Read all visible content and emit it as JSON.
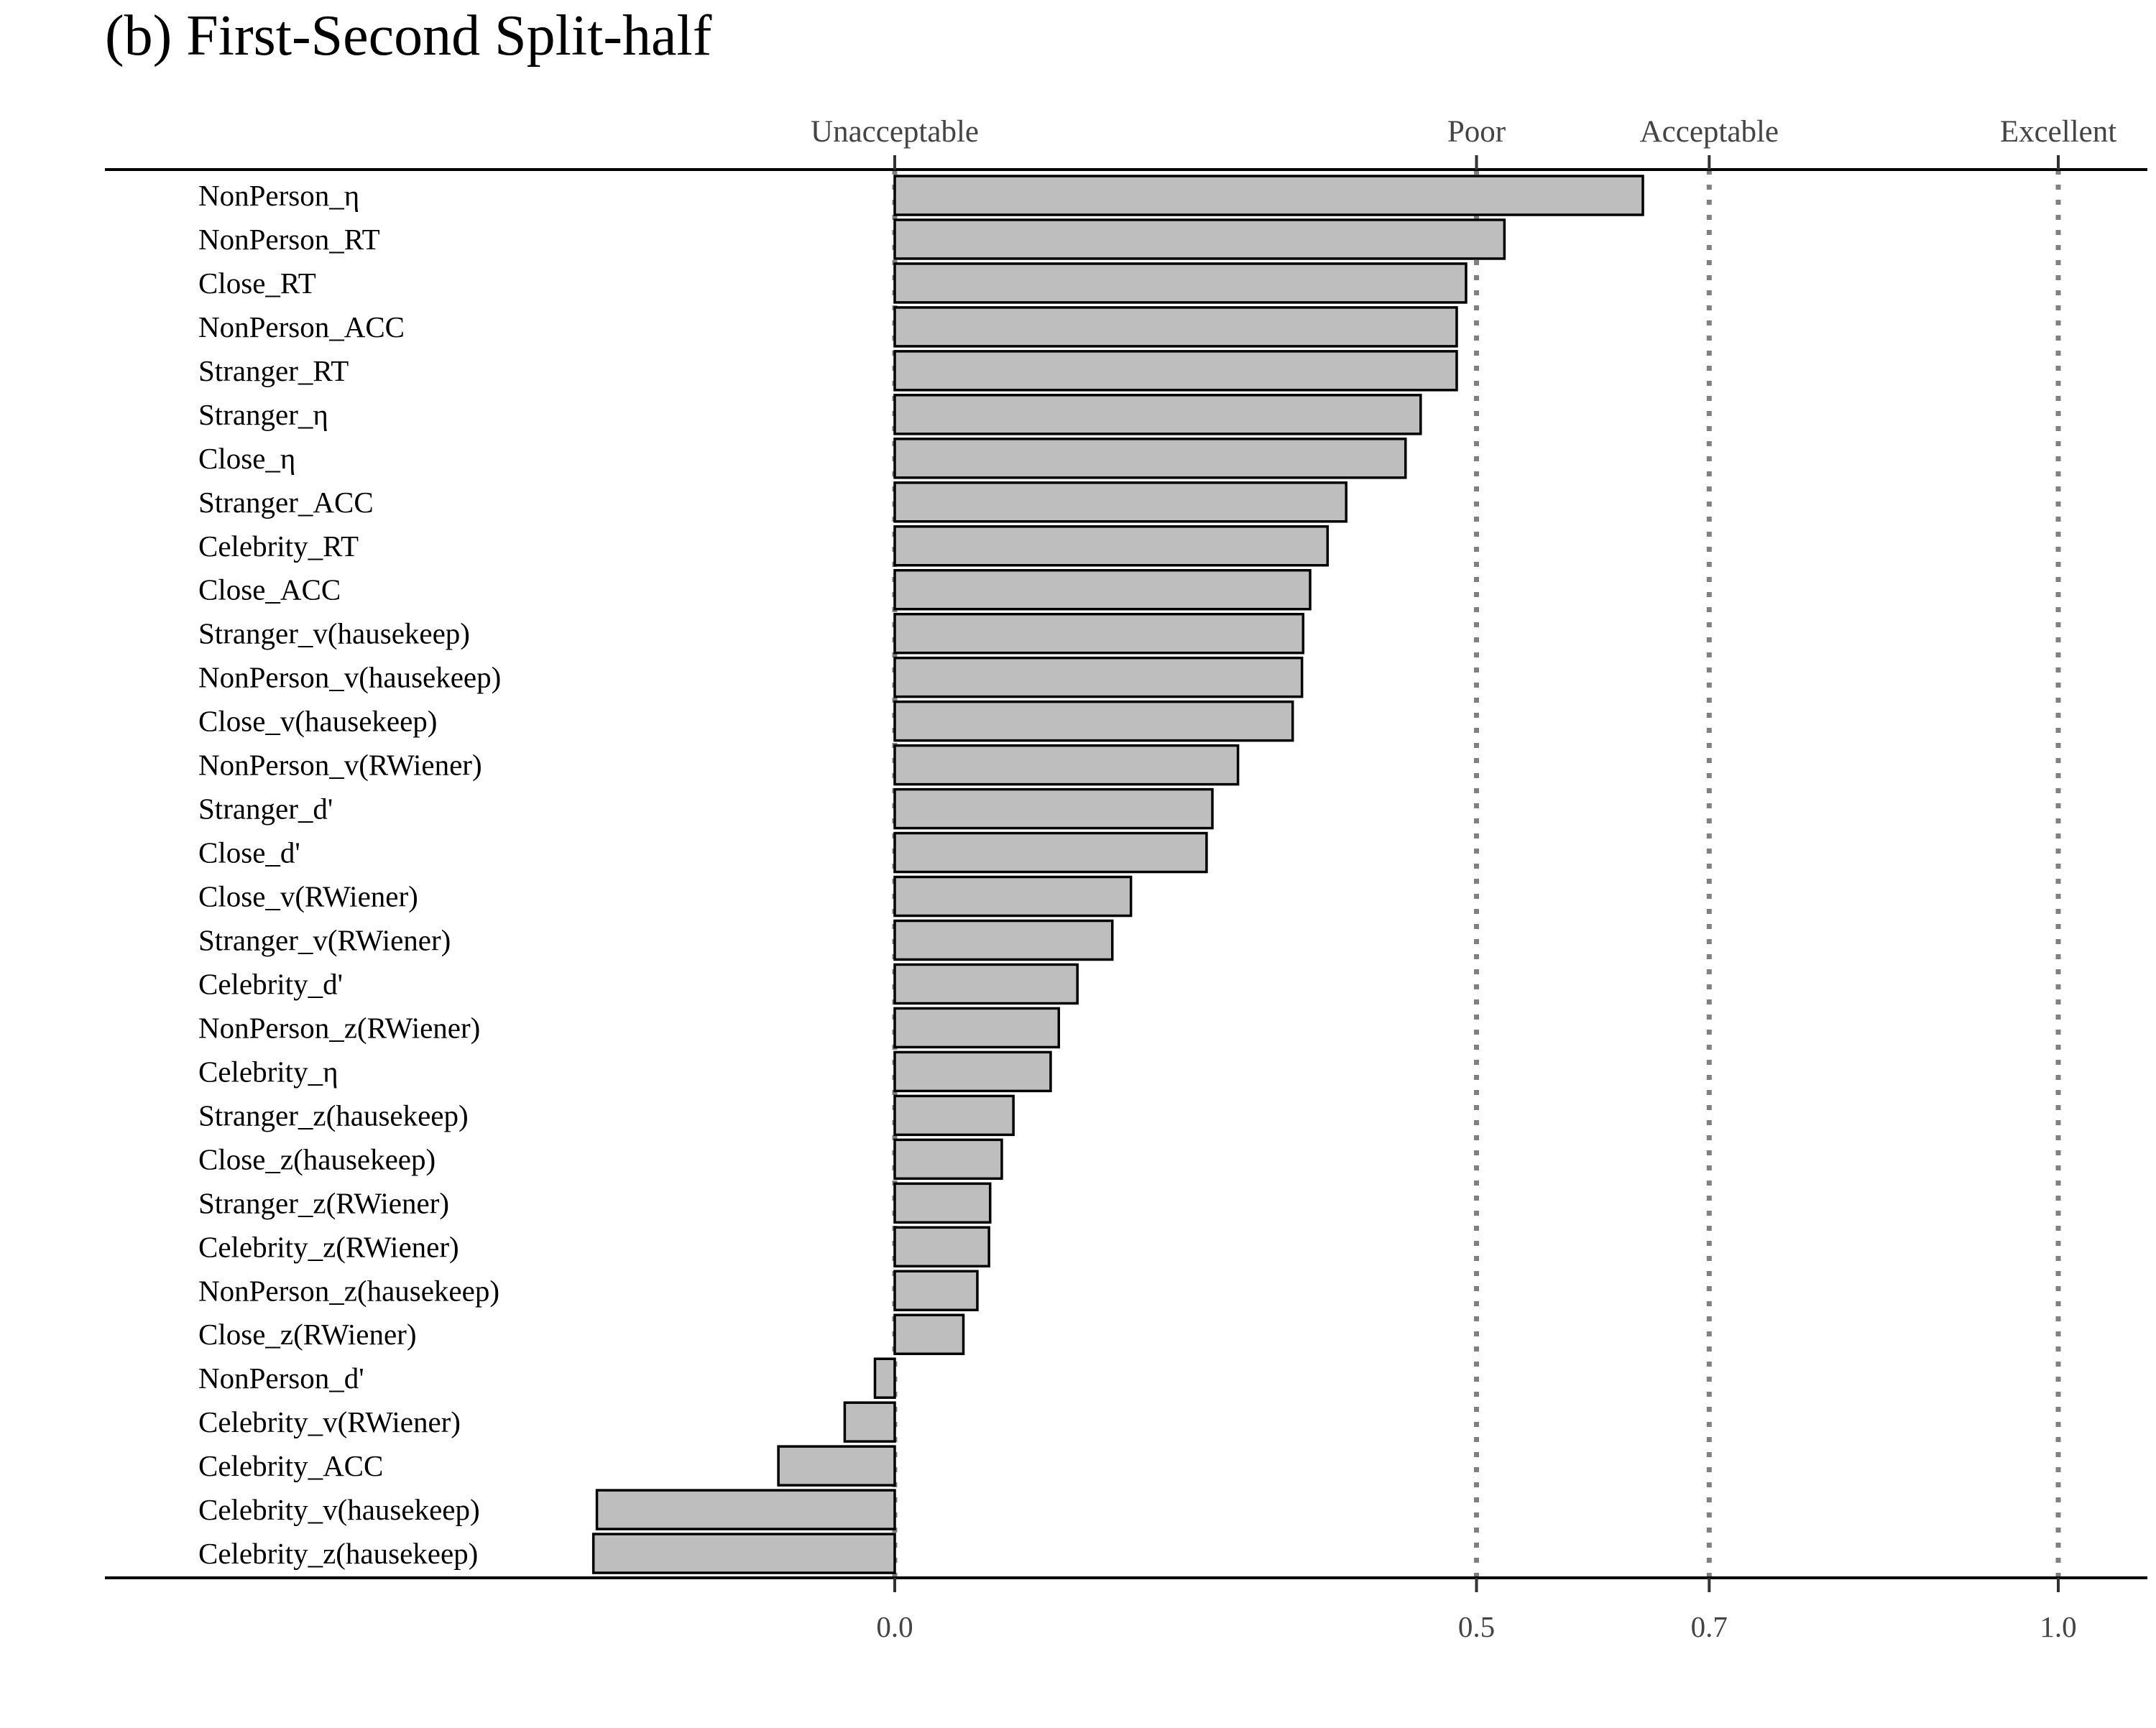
{
  "chart_data": {
    "type": "bar",
    "orientation": "horizontal",
    "title": "(b) First-Second Split-half",
    "xlabel": "",
    "ylabel": "",
    "xlim": [
      -0.678,
      1.078
    ],
    "x_ticks": [
      {
        "value": 0.0,
        "label": "0.0"
      },
      {
        "value": 0.5,
        "label": "0.5"
      },
      {
        "value": 0.7,
        "label": "0.7"
      },
      {
        "value": 1.0,
        "label": "1.0"
      }
    ],
    "reference_lines": [
      {
        "value": 0.0,
        "label": "Unacceptable",
        "style": "dotted"
      },
      {
        "value": 0.5,
        "label": "Poor",
        "style": "dotted"
      },
      {
        "value": 0.7,
        "label": "Acceptable",
        "style": "dotted"
      },
      {
        "value": 1.0,
        "label": "Excellent",
        "style": "dotted"
      }
    ],
    "grid": false,
    "legend": "none",
    "bar_fill": "#bebebe",
    "bar_stroke": "#000000",
    "categories": [
      "NonPerson_η",
      "NonPerson_RT",
      "Close_RT",
      "NonPerson_ACC",
      "Stranger_RT",
      "Stranger_η",
      "Close_η",
      "Stranger_ACC",
      "Celebrity_RT",
      "Close_ACC",
      "Stranger_v(hausekeep)",
      "NonPerson_v(hausekeep)",
      "Close_v(hausekeep)",
      "NonPerson_v(RWiener)",
      "Stranger_d'",
      "Close_d'",
      "Close_v(RWiener)",
      "Stranger_v(RWiener)",
      "Celebrity_d'",
      "NonPerson_z(RWiener)",
      "Celebrity_η",
      "Stranger_z(hausekeep)",
      "Close_z(hausekeep)",
      "Stranger_z(RWiener)",
      "Celebrity_z(RWiener)",
      "NonPerson_z(hausekeep)",
      "Close_z(RWiener)",
      "NonPerson_d'",
      "Celebrity_v(RWiener)",
      "Celebrity_ACC",
      "Celebrity_v(hausekeep)",
      "Celebrity_z(hausekeep)"
    ],
    "values": [
      0.643,
      0.524,
      0.491,
      0.483,
      0.483,
      0.452,
      0.439,
      0.388,
      0.372,
      0.357,
      0.351,
      0.35,
      0.342,
      0.295,
      0.273,
      0.268,
      0.203,
      0.187,
      0.157,
      0.141,
      0.134,
      0.102,
      0.092,
      0.082,
      0.081,
      0.071,
      0.059,
      -0.017,
      -0.043,
      -0.1,
      -0.256,
      -0.259
    ]
  }
}
